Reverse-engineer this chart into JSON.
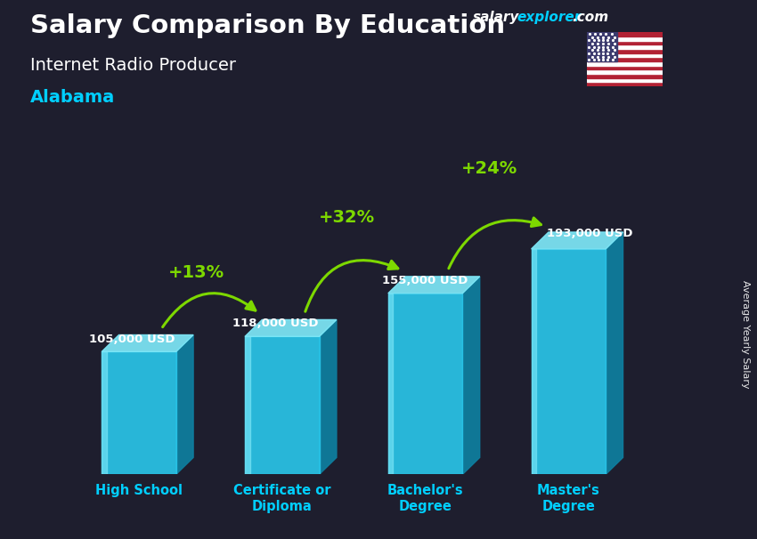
{
  "title_part1": "Salary Comparison By Education",
  "subtitle1": "Internet Radio Producer",
  "subtitle2": "Alabama",
  "ylabel": "Average Yearly Salary",
  "categories": [
    "High School",
    "Certificate or\nDiploma",
    "Bachelor's\nDegree",
    "Master's\nDegree"
  ],
  "values": [
    105000,
    118000,
    155000,
    193000
  ],
  "labels": [
    "105,000 USD",
    "118,000 USD",
    "155,000 USD",
    "193,000 USD"
  ],
  "pct_labels": [
    "+13%",
    "+32%",
    "+24%"
  ],
  "bar_front_color": "#29c4e8",
  "bar_side_color": "#0e7fa0",
  "bar_top_color": "#7ee8f8",
  "bar_highlight": "#6adaf0",
  "background_color": "#1e1e2e",
  "text_color": "#ffffff",
  "cyan_color": "#00cfff",
  "green_color": "#7dd800",
  "ylim": [
    0,
    240000
  ],
  "bar_width": 0.52,
  "side_depth": 0.12
}
